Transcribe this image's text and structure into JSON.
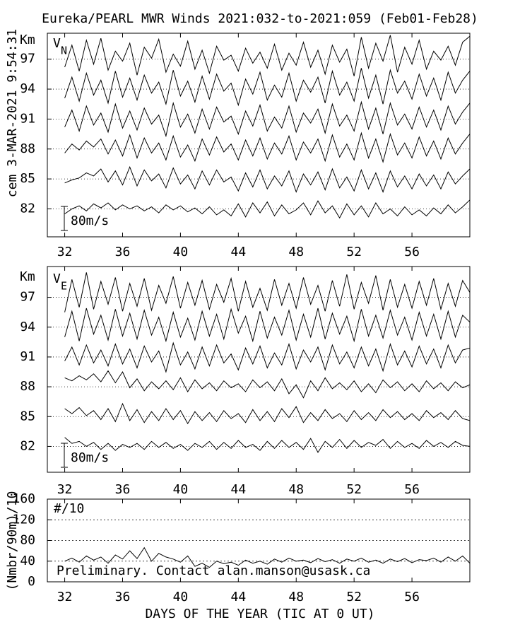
{
  "chart_data": [
    {
      "type": "line",
      "title": "Eureka/PEARL MWR Winds 2021:032-to-2021:059 (Feb01-Feb28)",
      "timestamp": "cem 3-MAR-2021  9:54:31",
      "ylabel": "Km",
      "component": "V",
      "component_sub": "N",
      "scale_label": "80m/s",
      "color": "#000000",
      "grid": true,
      "xlim": [
        30.8,
        60
      ],
      "xticks": [
        32,
        36,
        40,
        44,
        48,
        52,
        56
      ],
      "ylim": [
        79.2,
        99.6
      ],
      "yticks": [
        82,
        85,
        88,
        91,
        94,
        97
      ],
      "x": [
        32,
        32.5,
        33,
        33.5,
        34,
        34.5,
        35,
        35.5,
        36,
        36.5,
        37,
        37.5,
        38,
        38.5,
        39,
        39.5,
        40,
        40.5,
        41,
        41.5,
        42,
        42.5,
        43,
        43.5,
        44,
        44.5,
        45,
        45.5,
        46,
        46.5,
        47,
        47.5,
        48,
        48.5,
        49,
        49.5,
        50,
        50.5,
        51,
        51.5,
        52,
        52.5,
        53,
        53.5,
        54,
        54.5,
        55,
        55.5,
        56,
        56.5,
        57,
        57.5,
        58,
        58.5,
        59,
        59.5,
        60
      ],
      "series": [
        {
          "values": [
            96.2,
            98.4,
            95.8,
            98.9,
            96.5,
            99.1,
            95.9,
            97.8,
            96.8,
            98.6,
            95.4,
            98.2,
            97.1,
            99.0,
            95.7,
            97.5,
            96.3,
            98.8,
            96.0,
            97.9,
            95.6,
            98.3,
            96.9,
            97.4,
            95.8,
            98.1,
            96.6,
            97.7,
            96.1,
            98.5,
            95.9,
            97.6,
            96.4,
            98.7,
            96.2,
            97.9,
            95.5,
            98.4,
            96.7,
            98.0,
            95.3,
            99.2,
            96.1,
            98.6,
            96.8,
            99.4,
            95.7,
            98.2,
            96.5,
            98.9,
            96.0,
            97.8,
            96.9,
            98.3,
            96.4,
            98.7,
            99.3
          ]
        },
        {
          "values": [
            93.1,
            95.2,
            92.8,
            95.6,
            93.4,
            94.9,
            92.6,
            95.8,
            93.2,
            95.1,
            92.9,
            95.4,
            93.6,
            94.7,
            92.5,
            95.9,
            93.3,
            94.8,
            92.7,
            95.3,
            93.0,
            95.5,
            93.8,
            94.6,
            92.4,
            95.0,
            93.5,
            95.7,
            92.9,
            94.4,
            93.2,
            95.6,
            92.8,
            94.9,
            93.7,
            95.2,
            92.6,
            95.8,
            93.4,
            94.7,
            92.8,
            96.1,
            93.1,
            95.4,
            92.5,
            95.9,
            93.6,
            94.8,
            93.0,
            95.5,
            93.3,
            95.1,
            92.9,
            95.7,
            93.6,
            94.9,
            95.8
          ]
        },
        {
          "values": [
            90.2,
            91.9,
            89.8,
            92.3,
            90.4,
            91.6,
            89.7,
            92.5,
            90.1,
            91.8,
            89.9,
            92.1,
            90.5,
            91.4,
            89.3,
            92.6,
            90.2,
            91.5,
            89.6,
            92.0,
            90.0,
            92.2,
            90.7,
            91.3,
            89.5,
            91.8,
            90.3,
            92.4,
            89.8,
            91.2,
            90.1,
            92.3,
            89.7,
            91.6,
            90.6,
            92.0,
            89.6,
            92.5,
            90.3,
            91.4,
            89.8,
            92.7,
            90.0,
            92.1,
            89.5,
            92.6,
            90.4,
            91.5,
            90.0,
            92.2,
            90.2,
            91.9,
            89.9,
            92.3,
            90.5,
            91.7,
            92.6
          ]
        },
        {
          "values": [
            87.6,
            88.5,
            87.9,
            88.8,
            88.2,
            89.0,
            87.5,
            88.9,
            87.3,
            89.4,
            87.1,
            89.1,
            87.6,
            88.6,
            86.9,
            89.3,
            87.2,
            88.4,
            86.8,
            89.0,
            87.4,
            89.2,
            87.7,
            88.5,
            86.9,
            88.9,
            87.3,
            89.1,
            87.0,
            88.6,
            87.5,
            89.3,
            86.9,
            88.7,
            87.6,
            89.0,
            86.8,
            89.4,
            87.2,
            88.5,
            86.9,
            89.6,
            87.1,
            89.0,
            86.7,
            89.5,
            87.4,
            88.6,
            87.1,
            89.2,
            87.3,
            88.8,
            87.0,
            89.1,
            87.5,
            88.6,
            89.5
          ]
        },
        {
          "values": [
            84.6,
            84.9,
            85.1,
            85.6,
            85.3,
            86.0,
            84.7,
            85.8,
            84.4,
            86.2,
            84.3,
            85.9,
            84.8,
            85.5,
            84.1,
            86.1,
            84.5,
            85.4,
            84.0,
            85.8,
            84.4,
            85.9,
            84.7,
            85.2,
            83.8,
            85.6,
            84.2,
            85.9,
            84.0,
            85.3,
            84.3,
            85.8,
            83.7,
            85.5,
            84.4,
            85.7,
            83.9,
            86.0,
            84.1,
            85.2,
            83.8,
            85.9,
            84.0,
            85.6,
            83.7,
            85.8,
            84.2,
            85.3,
            84.0,
            85.5,
            84.3,
            85.4,
            84.0,
            85.7,
            84.5,
            85.3,
            86.0
          ]
        },
        {
          "values": [
            81.5,
            82.0,
            82.3,
            81.8,
            82.5,
            82.1,
            82.6,
            81.9,
            82.4,
            82.0,
            82.3,
            81.8,
            82.2,
            81.6,
            82.4,
            81.9,
            82.3,
            81.7,
            82.1,
            81.5,
            82.2,
            81.4,
            81.9,
            81.3,
            82.5,
            81.2,
            82.6,
            81.6,
            82.7,
            81.3,
            82.4,
            81.5,
            81.9,
            82.6,
            81.4,
            82.8,
            81.6,
            82.3,
            81.1,
            82.5,
            81.4,
            82.3,
            81.2,
            82.6,
            81.5,
            82.0,
            81.3,
            82.2,
            81.4,
            81.9,
            81.3,
            82.1,
            81.5,
            82.4,
            81.6,
            82.2,
            82.9
          ]
        }
      ]
    },
    {
      "type": "line",
      "ylabel": "Km",
      "component": "V",
      "component_sub": "E",
      "scale_label": "80m/s",
      "color": "#000000",
      "grid": true,
      "xlim": [
        30.8,
        60
      ],
      "xticks": [
        32,
        36,
        40,
        44,
        48,
        52,
        56
      ],
      "ylim": [
        79.4,
        100.1
      ],
      "yticks": [
        82,
        85,
        88,
        91,
        94,
        97
      ],
      "x": [
        32,
        32.5,
        33,
        33.5,
        34,
        34.5,
        35,
        35.5,
        36,
        36.5,
        37,
        37.5,
        38,
        38.5,
        39,
        39.5,
        40,
        40.5,
        41,
        41.5,
        42,
        42.5,
        43,
        43.5,
        44,
        44.5,
        45,
        45.5,
        46,
        46.5,
        47,
        47.5,
        48,
        48.5,
        49,
        49.5,
        50,
        50.5,
        51,
        51.5,
        52,
        52.5,
        53,
        53.5,
        54,
        54.5,
        55,
        55.5,
        56,
        56.5,
        57,
        57.5,
        58,
        58.5,
        59,
        59.5,
        60
      ],
      "series": [
        {
          "values": [
            95.5,
            98.8,
            96.0,
            99.5,
            95.8,
            98.6,
            96.3,
            99.0,
            95.6,
            98.4,
            96.1,
            98.9,
            95.7,
            98.2,
            96.4,
            99.1,
            95.9,
            98.5,
            96.2,
            98.7,
            95.8,
            98.3,
            96.5,
            98.9,
            95.6,
            98.6,
            96.0,
            97.9,
            95.7,
            98.8,
            96.2,
            98.4,
            95.9,
            99.0,
            96.3,
            98.2,
            95.6,
            98.7,
            96.1,
            99.3,
            95.8,
            98.5,
            96.4,
            99.2,
            95.7,
            98.8,
            96.0,
            98.3,
            95.9,
            98.6,
            96.2,
            98.9,
            95.8,
            98.4,
            96.1,
            98.7,
            97.5
          ]
        },
        {
          "values": [
            93.0,
            95.6,
            92.6,
            95.9,
            93.3,
            95.2,
            92.7,
            95.8,
            93.1,
            95.4,
            92.8,
            95.7,
            93.2,
            95.0,
            92.6,
            95.5,
            93.0,
            94.9,
            92.7,
            95.6,
            93.1,
            95.3,
            92.8,
            95.8,
            93.4,
            95.1,
            92.6,
            95.6,
            92.9,
            95.0,
            93.2,
            95.7,
            92.7,
            95.3,
            93.0,
            95.9,
            92.8,
            95.4,
            93.3,
            95.1,
            92.6,
            95.8,
            93.1,
            95.2,
            92.9,
            95.7,
            93.2,
            95.0,
            92.7,
            95.5,
            93.1,
            95.3,
            92.8,
            95.6,
            93.0,
            95.2,
            94.5
          ]
        },
        {
          "values": [
            90.6,
            92.0,
            90.2,
            92.2,
            90.4,
            91.7,
            90.1,
            92.3,
            90.3,
            91.8,
            89.9,
            92.1,
            90.5,
            91.6,
            89.5,
            92.4,
            90.2,
            91.5,
            89.8,
            92.0,
            90.1,
            92.2,
            90.4,
            91.3,
            89.7,
            91.9,
            90.3,
            92.1,
            89.9,
            91.4,
            90.2,
            92.3,
            89.8,
            91.7,
            90.5,
            92.0,
            89.7,
            92.2,
            90.3,
            91.5,
            89.9,
            92.0,
            90.1,
            91.8,
            89.6,
            92.3,
            90.2,
            91.6,
            90.0,
            92.1,
            90.3,
            91.8,
            89.9,
            92.2,
            90.4,
            91.7,
            91.9
          ]
        },
        {
          "values": [
            88.9,
            88.6,
            89.1,
            88.7,
            89.3,
            88.5,
            89.6,
            88.4,
            89.5,
            87.9,
            88.8,
            87.6,
            88.5,
            87.8,
            88.6,
            87.7,
            88.9,
            87.5,
            88.7,
            87.8,
            88.4,
            87.6,
            88.6,
            87.9,
            88.3,
            87.5,
            88.7,
            87.9,
            88.5,
            87.6,
            88.8,
            87.3,
            88.2,
            86.9,
            88.6,
            87.6,
            88.9,
            87.8,
            88.4,
            87.7,
            88.6,
            87.5,
            88.3,
            87.4,
            88.7,
            87.9,
            88.5,
            87.6,
            88.3,
            87.5,
            88.6,
            87.8,
            88.4,
            87.6,
            88.5,
            87.9,
            88.2
          ]
        },
        {
          "values": [
            85.8,
            85.3,
            85.9,
            85.1,
            85.6,
            84.7,
            85.8,
            84.5,
            86.3,
            84.6,
            85.7,
            84.4,
            85.5,
            84.6,
            85.8,
            84.7,
            85.6,
            84.3,
            85.5,
            84.6,
            85.4,
            84.5,
            85.6,
            84.8,
            85.3,
            84.4,
            85.7,
            84.6,
            85.5,
            84.5,
            85.8,
            84.9,
            86.0,
            84.4,
            85.4,
            84.6,
            85.7,
            84.8,
            85.3,
            84.5,
            85.6,
            84.7,
            85.4,
            84.6,
            85.7,
            84.9,
            85.5,
            84.7,
            85.3,
            84.6,
            85.6,
            84.9,
            85.4,
            84.7,
            85.6,
            84.8,
            84.6
          ]
        },
        {
          "values": [
            82.9,
            82.3,
            82.5,
            82.0,
            82.4,
            81.7,
            82.3,
            81.6,
            82.2,
            81.9,
            82.3,
            81.7,
            82.5,
            81.9,
            82.4,
            81.8,
            82.2,
            81.6,
            82.3,
            81.9,
            82.5,
            81.7,
            82.4,
            81.8,
            82.6,
            81.9,
            82.2,
            81.6,
            82.5,
            81.8,
            82.6,
            81.9,
            82.4,
            81.7,
            82.8,
            81.4,
            82.5,
            81.9,
            82.7,
            81.8,
            82.6,
            81.9,
            82.4,
            82.1,
            82.7,
            81.8,
            82.5,
            81.9,
            82.3,
            81.8,
            82.6,
            82.0,
            82.4,
            81.9,
            82.5,
            82.1,
            82.0
          ]
        }
      ]
    },
    {
      "type": "line",
      "ylabel": "(Nmbr/90m)/10",
      "annotation": "#/10",
      "note": "Preliminary. Contact alan.manson@usask.ca",
      "xlabel": "DAYS OF THE YEAR (TIC AT 0 UT)",
      "color": "#000000",
      "grid": true,
      "xlim": [
        30.8,
        60
      ],
      "xticks": [
        32,
        36,
        40,
        44,
        48,
        52,
        56
      ],
      "ylim": [
        0,
        160
      ],
      "yticks": [
        0,
        40,
        80,
        120,
        160
      ],
      "x": [
        32,
        32.5,
        33,
        33.5,
        34,
        34.5,
        35,
        35.5,
        36,
        36.5,
        37,
        37.5,
        38,
        38.5,
        39,
        39.5,
        40,
        40.5,
        41,
        41.5,
        42,
        42.5,
        43,
        43.5,
        44,
        44.5,
        45,
        45.5,
        46,
        46.5,
        47,
        47.5,
        48,
        48.5,
        49,
        49.5,
        50,
        50.5,
        51,
        51.5,
        52,
        52.5,
        53,
        53.5,
        54,
        54.5,
        55,
        55.5,
        56,
        56.5,
        57,
        57.5,
        58,
        58.5,
        59,
        59.5,
        60
      ],
      "series": [
        {
          "values": [
            40,
            46,
            38,
            50,
            42,
            48,
            36,
            52,
            44,
            60,
            45,
            66,
            40,
            55,
            48,
            44,
            38,
            50,
            30,
            36,
            28,
            40,
            35,
            38,
            32,
            42,
            36,
            40,
            34,
            44,
            38,
            46,
            40,
            42,
            37,
            45,
            39,
            43,
            36,
            44,
            40,
            46,
            38,
            42,
            36,
            44,
            39,
            45,
            37,
            43,
            41,
            46,
            38,
            48,
            40,
            50,
            36
          ]
        }
      ]
    }
  ]
}
